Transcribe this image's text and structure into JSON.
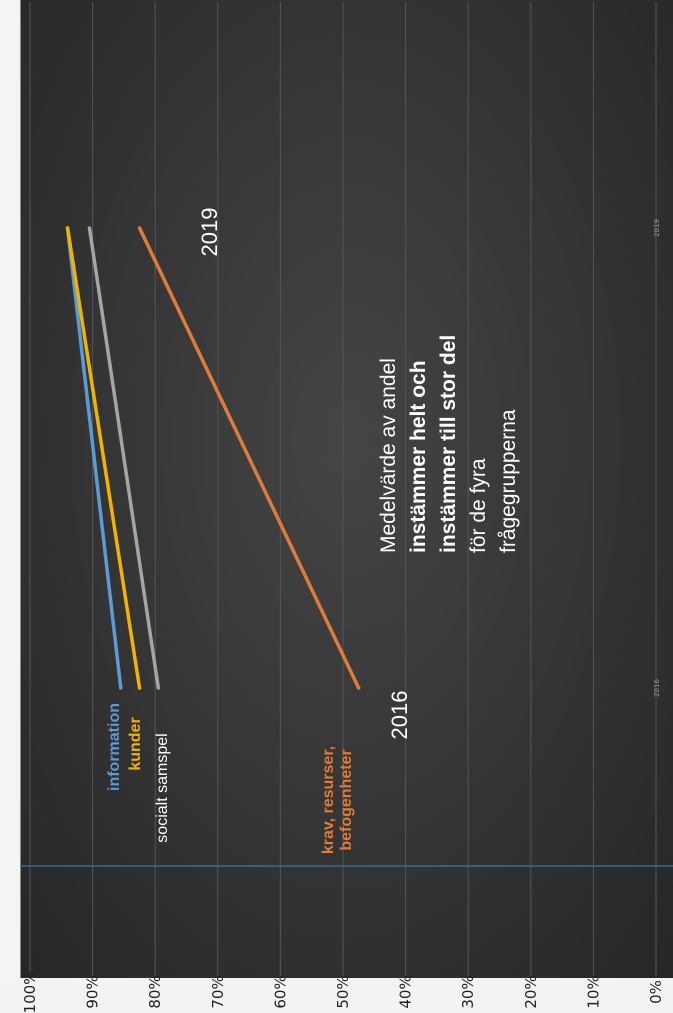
{
  "colors": {
    "background": "#333333",
    "gridline": "#555555",
    "information": "#5b9bd5",
    "kunder": "#f0b400",
    "socialt_samspel": "#a5a5a5",
    "krav": "#e07b39",
    "axis_marker": "#2e6da4"
  },
  "chart_data": {
    "type": "line",
    "orientation": "rotated-90-ccw",
    "x": [
      "2016",
      "2019"
    ],
    "ylim": [
      0,
      1
    ],
    "yticks": [
      "0%",
      "10%",
      "20%",
      "30%",
      "40%",
      "50%",
      "60%",
      "70%",
      "80%",
      "90%",
      "100%"
    ],
    "grid": true,
    "series": [
      {
        "name": "information",
        "color": "#5b9bd5",
        "values": [
          0.855,
          0.94
        ]
      },
      {
        "name": "kunder",
        "color": "#f0b400",
        "values": [
          0.825,
          0.94
        ]
      },
      {
        "name": "socialt samspel",
        "color": "#a5a5a5",
        "values": [
          0.795,
          0.905
        ]
      },
      {
        "name": "krav, resurser, befogenheter",
        "color": "#e07b39",
        "values": [
          0.475,
          0.825
        ]
      }
    ],
    "series_labels": [
      {
        "key": "information",
        "lines": [
          "information"
        ],
        "color": "#5b9bd5"
      },
      {
        "key": "kunder",
        "lines": [
          "kunder"
        ],
        "color": "#f0b400"
      },
      {
        "key": "socialt samspel",
        "lines": [
          "socialt samspel"
        ],
        "color": "#ffffff"
      },
      {
        "key": "krav",
        "lines": [
          "krav, resurser,",
          "befogenheter"
        ],
        "color": "#e07b39"
      }
    ],
    "year_labels": [
      "2016",
      "2019"
    ],
    "axis_tick_labels": [
      "2016",
      "2019"
    ],
    "annotation": {
      "lines": [
        {
          "text": "Medelvärde av andel",
          "bold": false
        },
        {
          "text": "instämmer helt och",
          "bold": true
        },
        {
          "text": "instämmer till stor del",
          "bold": true
        },
        {
          "text": "för de fyra",
          "bold": false
        },
        {
          "text": "frågegrupperna",
          "bold": false
        }
      ]
    }
  }
}
